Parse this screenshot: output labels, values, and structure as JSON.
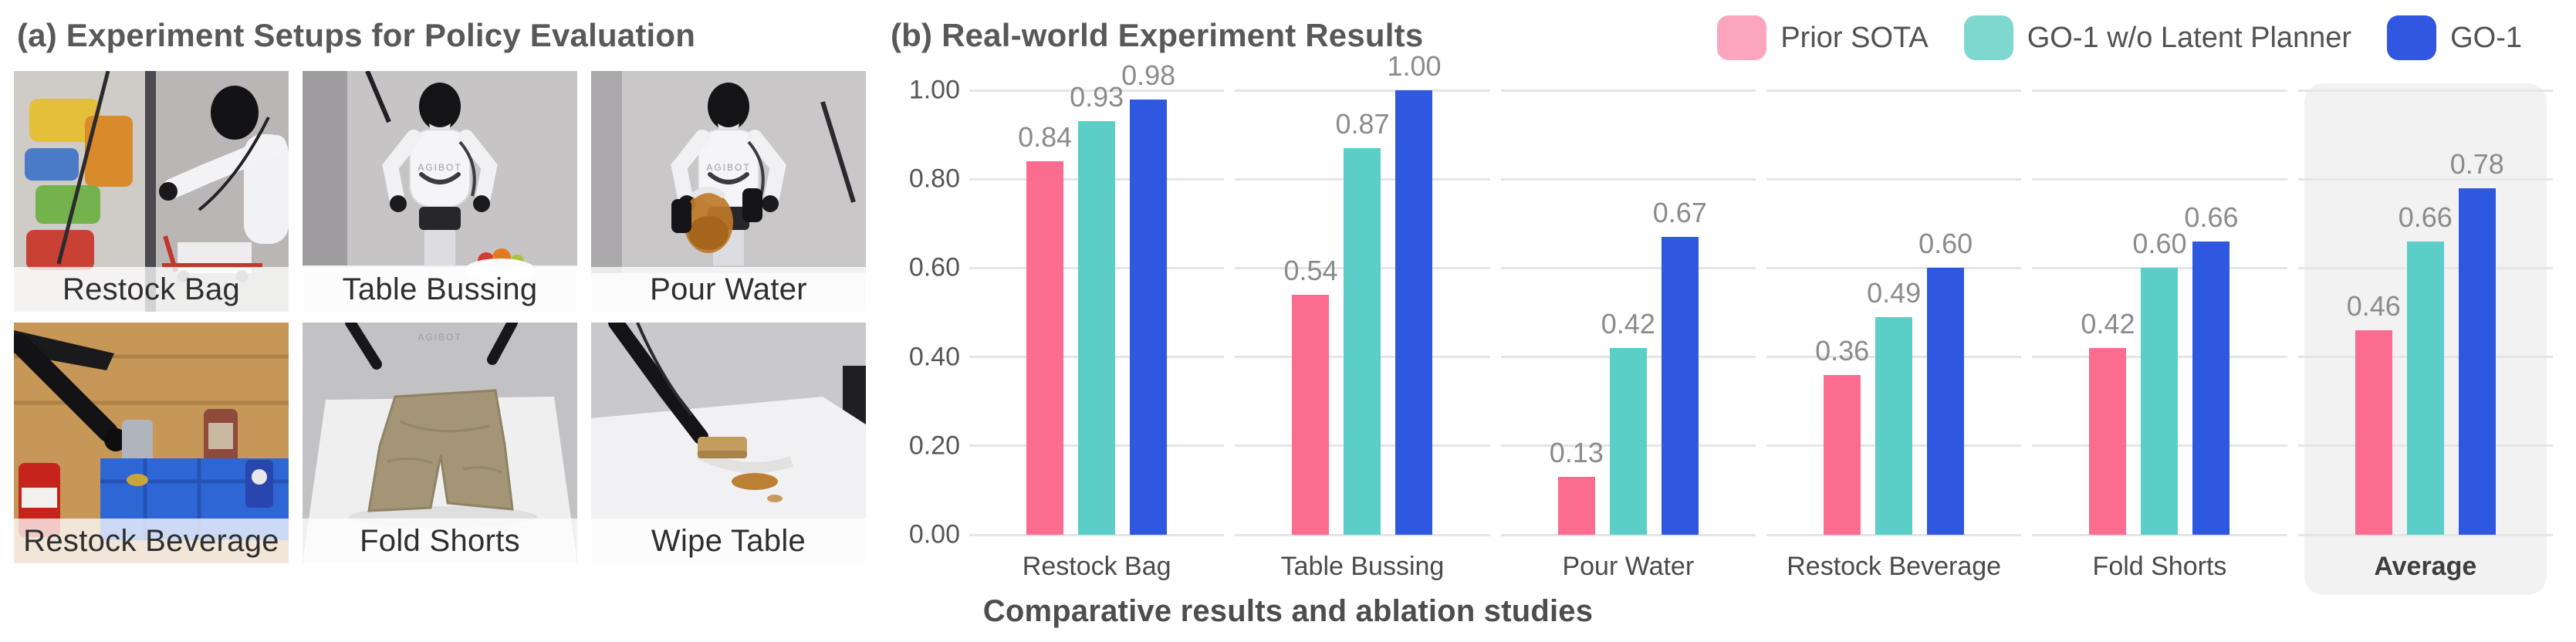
{
  "panel_a": {
    "title": "(a) Experiment Setups for Policy Evaluation",
    "robot_brand": "AGIBOT",
    "photos": [
      {
        "label": "Restock Bag"
      },
      {
        "label": "Table Bussing"
      },
      {
        "label": "Pour Water"
      },
      {
        "label": "Restock Beverage"
      },
      {
        "label": "Fold Shorts"
      },
      {
        "label": "Wipe Table"
      }
    ]
  },
  "panel_b": {
    "title": "(b) Real-world Experiment Results",
    "caption": "Comparative results and ablation studies",
    "legend": [
      {
        "label": "Prior SOTA",
        "swatch_color": "#FBA6BE"
      },
      {
        "label": "GO-1 w/o Latent Planner",
        "swatch_color": "#7FD8D0"
      },
      {
        "label": "GO-1",
        "swatch_color": "#3157E1"
      }
    ]
  },
  "chart_data": {
    "type": "bar",
    "title": "(b) Real-world Experiment Results",
    "categories": [
      "Restock Bag",
      "Table Bussing",
      "Pour Water",
      "Restock Beverage",
      "Fold Shorts",
      "Average"
    ],
    "series": [
      {
        "name": "Prior SOTA",
        "color": "#FB6C8F",
        "values": [
          0.84,
          0.54,
          0.13,
          0.36,
          0.42,
          0.46
        ]
      },
      {
        "name": "GO-1 w/o Latent Planner",
        "color": "#5BCEC7",
        "values": [
          0.93,
          0.87,
          0.42,
          0.49,
          0.6,
          0.66
        ]
      },
      {
        "name": "GO-1",
        "color": "#2F58E0",
        "values": [
          0.98,
          1.0,
          0.67,
          0.6,
          0.66,
          0.78
        ]
      }
    ],
    "ylim": [
      0,
      1.0
    ],
    "yticks": [
      "0.00",
      "0.20",
      "0.40",
      "0.60",
      "0.80",
      "1.00"
    ],
    "grid": "horizontal",
    "legend_position": "top-right",
    "highlight_category": "Average",
    "value_labels": "2dp",
    "gridline_color": "#E5E5E7",
    "highlight_color": "#F2F2F3"
  }
}
